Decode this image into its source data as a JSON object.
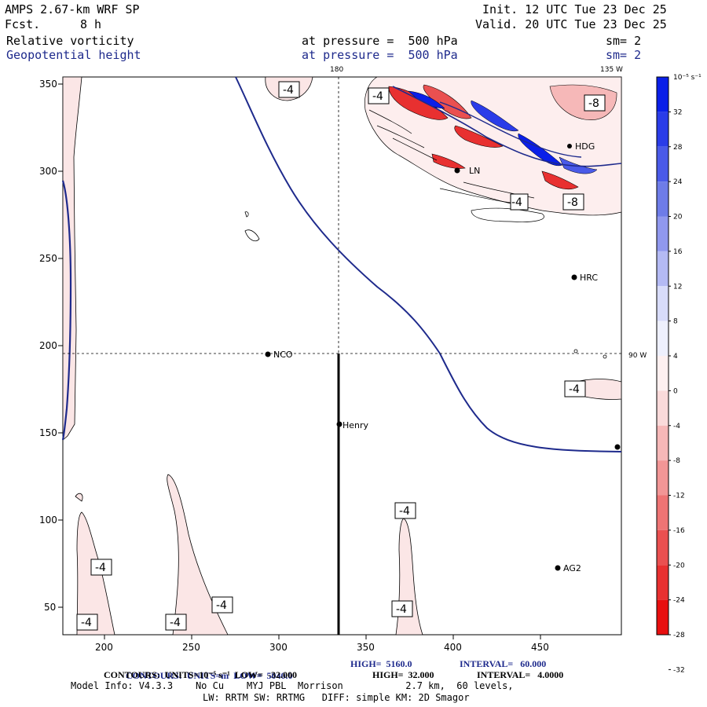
{
  "header": {
    "model": "AMPS 2.67-km WRF SP",
    "init": "Init. 12 UTC Tue 23 Dec 25",
    "fcst_label": "Fcst.",
    "fcst_value": "8 h",
    "valid": "Valid. 20 UTC Tue 23 Dec 25",
    "field1": "Relative vorticity",
    "field1_level": "at pressure =  500 hPa",
    "field1_sm": "sm= 2",
    "field2": "Geopotential height",
    "field2_level": "at pressure =  500 hPa",
    "field2_sm": "sm= 2"
  },
  "map": {
    "x_ticks": [
      "200",
      "250",
      "300",
      "350",
      "400",
      "450"
    ],
    "y_ticks": [
      "350",
      "300",
      "250",
      "200",
      "150",
      "100",
      "50"
    ],
    "lon_180": "180",
    "lon_135w": "135 W",
    "lat_90s": "90 W",
    "stations": [
      {
        "name": "NCO"
      },
      {
        "name": "Henry"
      },
      {
        "name": "HRC"
      },
      {
        "name": "AG2"
      },
      {
        "name": "LN"
      },
      {
        "name": "HDG"
      }
    ],
    "contour_labels": [
      "-4",
      "-4",
      "-8",
      "-4",
      "-8",
      "-4",
      "-4",
      "-4",
      "-4",
      "-4",
      "-4"
    ]
  },
  "colorbar": {
    "unit": "10⁻⁵ s⁻¹",
    "labels": [
      "32",
      "28",
      "24",
      "20",
      "16",
      "12",
      "8",
      "4",
      "0",
      "-4",
      "-8",
      "-12",
      "-16",
      "-20",
      "-24",
      "-28",
      "-32"
    ],
    "colors": [
      "#0a1fe8",
      "#2a3ce8",
      "#4a5ae8",
      "#6e7ce8",
      "#9098ee",
      "#b4baf4",
      "#d8dcfa",
      "#eef0fd",
      "#fdf0f0",
      "#fadada",
      "#f6b8b8",
      "#f29696",
      "#ee7474",
      "#ea5050",
      "#e83030",
      "#e80f0f"
    ]
  },
  "footer": {
    "line1_units": "CONTOURS:  UNITS=m  LOW=  5040.0",
    "line1_high": "HIGH=  5160.0",
    "line1_interval": "INTERVAL=   60.000",
    "line2_units": "CONTOURS:  UNITS=10⁻⁵ s⁻¹  LOW=  -32.000",
    "line2_high": "HIGH=  32.000",
    "line2_interval": "INTERVAL=   4.0000",
    "line3": "Model Info: V4.3.3    No Cu    MYJ PBL  Morrison           2.7 km,  60 levels,",
    "line4": "LW: RRTM SW: RRTMG   DIFF: simple KM: 2D Smagor"
  }
}
